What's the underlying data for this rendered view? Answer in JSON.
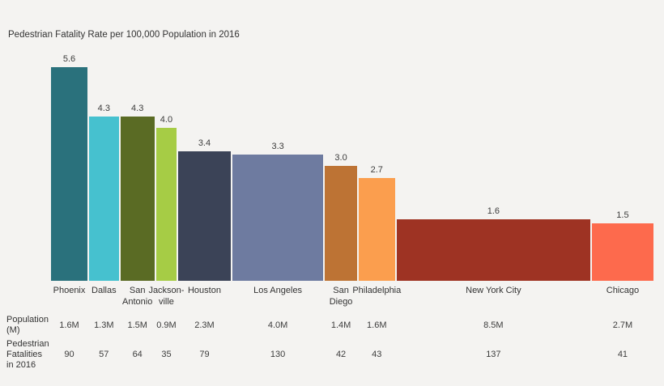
{
  "title": "Pedestrian Fatality Rate per 100,000 Population in 2016",
  "chart_data": {
    "type": "bar",
    "variant": "variable-width bar chart (bar width proportional to population, height proportional to fatality rate)",
    "title": "Pedestrian Fatality Rate per 100,000 Population in 2016",
    "categories": [
      "Phoenix",
      "Dallas",
      "San Antonio",
      "Jacksonville",
      "Houston",
      "Los Angeles",
      "San Diego",
      "Philadelphia",
      "New York City",
      "Chicago"
    ],
    "values": [
      5.6,
      4.3,
      4.3,
      4.0,
      3.4,
      3.3,
      3.0,
      2.7,
      1.6,
      1.5
    ],
    "value_labels": [
      "5.6",
      "4.3",
      "4.3",
      "4.0",
      "3.4",
      "3.3",
      "3.0",
      "2.7",
      "1.6",
      "1.5"
    ],
    "populations_m": [
      1.6,
      1.3,
      1.5,
      0.9,
      2.3,
      4.0,
      1.4,
      1.6,
      8.5,
      2.7
    ],
    "population_labels": [
      "1.6M",
      "1.3M",
      "1.5M",
      "0.9M",
      "2.3M",
      "4.0M",
      "1.4M",
      "1.6M",
      "8.5M",
      "2.7M"
    ],
    "fatalities": [
      90,
      57,
      64,
      35,
      79,
      130,
      42,
      43,
      137,
      41
    ],
    "fatality_labels": [
      "90",
      "57",
      "64",
      "35",
      "79",
      "130",
      "42",
      "43",
      "137",
      "41"
    ],
    "colors": [
      "#2a717c",
      "#46c1cf",
      "#5a6b24",
      "#a6cc45",
      "#3b4357",
      "#6e7ba0",
      "#bd7334",
      "#fb9e4e",
      "#9e3323",
      "#fd6a4d"
    ],
    "category_label_lines": [
      [
        "Phoenix"
      ],
      [
        "Dallas"
      ],
      [
        "San",
        "Antonio"
      ],
      [
        "Jackson-",
        "ville"
      ],
      [
        "Houston"
      ],
      [
        "Los Angeles"
      ],
      [
        "San",
        "Diego"
      ],
      [
        "Philadelphia"
      ],
      [
        "New York City"
      ],
      [
        "Chicago"
      ]
    ],
    "ylabel": "",
    "xlabel": "",
    "ylim": [
      0,
      5.6
    ],
    "grid": false,
    "legend": "none"
  },
  "table": {
    "population_row_label": "Population (M)",
    "population_row_label_lines": [
      "Population",
      "(M)"
    ],
    "fatalities_row_label": "Pedestrian Fatalities in 2016",
    "fatalities_row_label_lines": [
      "Pedestrian",
      "Fatalities",
      "in 2016"
    ]
  },
  "style": {
    "background": "#f4f3f1",
    "text_color": "#3b3b3b"
  }
}
